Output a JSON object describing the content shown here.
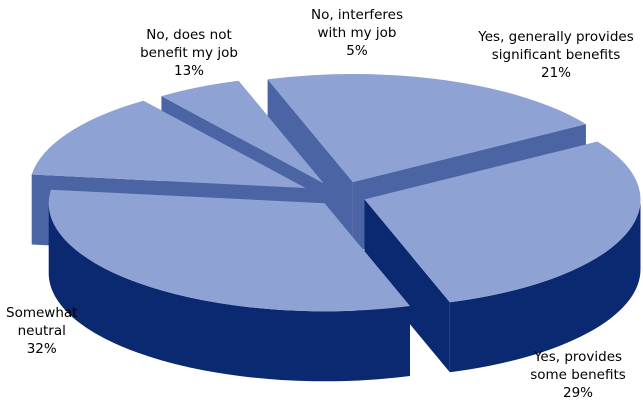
{
  "chart_data": {
    "type": "pie",
    "style": "3d-exploded",
    "colors": {
      "top": "#8fa2d4",
      "side_dark": "#0b2970",
      "side_light": "#4a64a4"
    },
    "slices": [
      {
        "label_lines": [
          "Yes, generally provides",
          "significant benefits"
        ],
        "value": 21,
        "value_label": "21%"
      },
      {
        "label_lines": [
          "Yes, provides",
          "some benefits"
        ],
        "value": 29,
        "value_label": "29%"
      },
      {
        "label_lines": [
          "Somewhat",
          "neutral"
        ],
        "value": 32,
        "value_label": "32%"
      },
      {
        "label_lines": [
          "No, does not",
          "benefit my job"
        ],
        "value": 13,
        "value_label": "13%"
      },
      {
        "label_lines": [
          "No, interferes",
          "with my job"
        ],
        "value": 5,
        "value_label": "5%"
      }
    ]
  }
}
